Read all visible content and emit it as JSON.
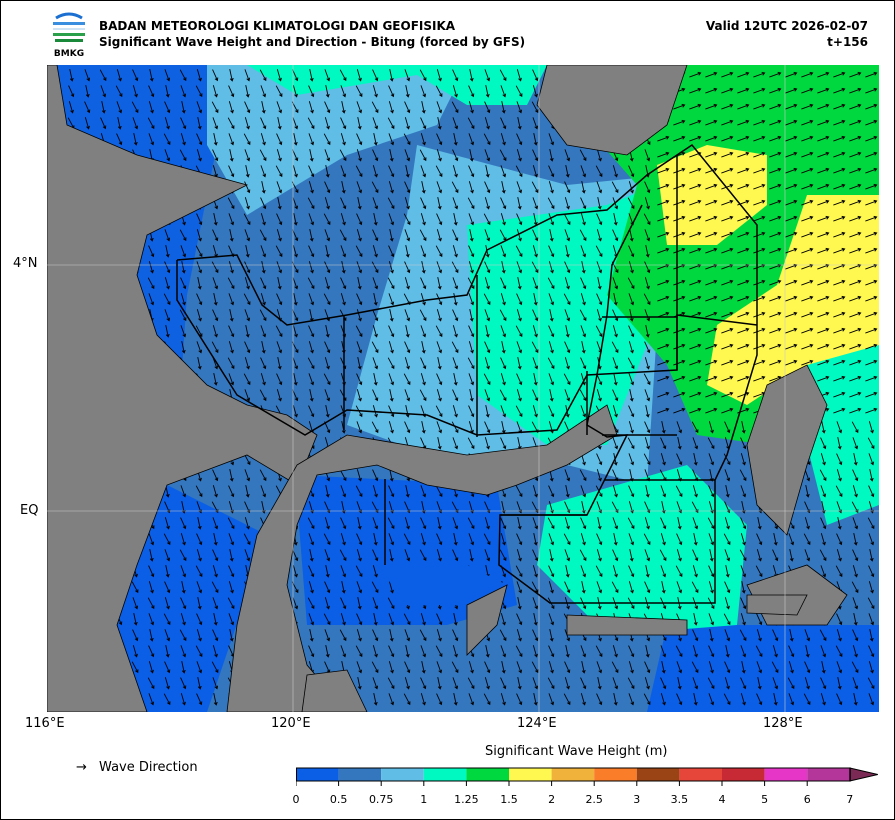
{
  "header": {
    "logo_text": "BMKG",
    "organization": "BADAN METEOROLOGI KLIMATOLOGI DAN GEOFISIKA",
    "title": "Significant Wave Height and Direction - Bitung (forced by GFS)",
    "valid": "Valid 12UTC 2026-02-07",
    "forecast_step": "t+156"
  },
  "map": {
    "lon_ticks": [
      "116°E",
      "120°E",
      "124°E",
      "128°E"
    ],
    "lat_ticks": [
      "4°N",
      "EQ"
    ],
    "land_color": "#808080",
    "wave_direction_predominant": "south-southeast"
  },
  "legend": {
    "arrow_symbol": "→",
    "arrow_label": "Wave Direction"
  },
  "colorbar": {
    "title": "Significant Wave Height (m)",
    "ticks": [
      "0",
      "0.5",
      "0.75",
      "1",
      "1.25",
      "1.5",
      "2",
      "2.5",
      "3",
      "3.5",
      "4",
      "5",
      "6",
      "7"
    ],
    "colors": [
      "#0a5fe6",
      "#3477be",
      "#5fbde6",
      "#00f9c0",
      "#00d840",
      "#fff850",
      "#f0b23a",
      "#fa7d2a",
      "#9a4416",
      "#e6463a",
      "#c82a35",
      "#e636c8",
      "#b4369a"
    ],
    "extend_color": "#7a2a55"
  }
}
